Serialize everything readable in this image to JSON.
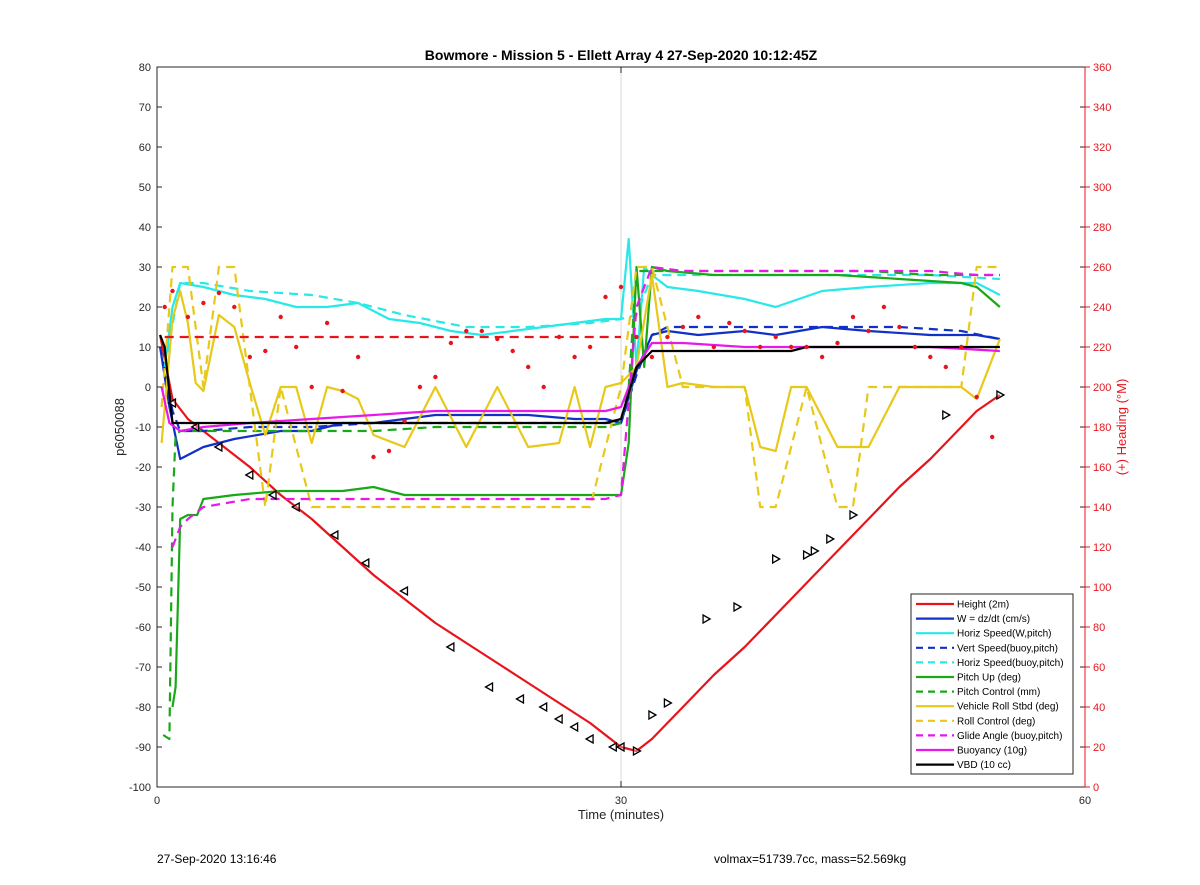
{
  "chart_data": {
    "type": "line",
    "title": "Bowmore - Mission 5 - Ellett Array 4 27-Sep-2020 10:12:45Z",
    "xlabel": "Time (minutes)",
    "ylabel": "p6050088",
    "y2label": "(+) Heading (°M)",
    "xlim": [
      0,
      60
    ],
    "ylim": [
      -100,
      80
    ],
    "y2lim": [
      0,
      360
    ],
    "xticks": [
      0,
      30,
      60
    ],
    "yticks": [
      -100,
      -90,
      -80,
      -70,
      -60,
      -50,
      -40,
      -30,
      -20,
      -10,
      0,
      10,
      20,
      30,
      40,
      50,
      60,
      70,
      80
    ],
    "y2ticks": [
      0,
      20,
      40,
      60,
      80,
      100,
      120,
      140,
      160,
      180,
      200,
      220,
      240,
      260,
      280,
      300,
      320,
      340,
      360
    ],
    "grid": "x=30 only",
    "legend_position": "bottom-right",
    "colors": {
      "height": "#e8141c",
      "w": "#1030c8",
      "horiz": "#28e8e8",
      "pitch": "#18a818",
      "roll": "#e8c818",
      "glide": "#e818e8",
      "buoy": "#e818e8",
      "vbd": "#000000",
      "right_axis": "#e8141c"
    },
    "series": [
      {
        "name": "Height (2m)",
        "color": "#e8141c",
        "dash": "solid",
        "x": [
          0.2,
          1,
          2,
          4,
          6,
          8,
          10,
          12,
          14,
          16,
          18,
          20,
          22,
          24,
          26,
          28,
          29,
          30,
          31,
          32,
          34,
          36,
          38,
          40,
          42,
          44,
          46,
          48,
          50,
          52,
          53,
          54.5
        ],
        "y": [
          13,
          -3,
          -8,
          -14,
          -20,
          -27,
          -33,
          -40,
          -47,
          -53,
          -59,
          -64,
          -69,
          -74,
          -79,
          -84,
          -87,
          -90,
          -91,
          -88,
          -80,
          -72,
          -65,
          -57,
          -49,
          -41,
          -33,
          -25,
          -18,
          -10,
          -6,
          -2
        ]
      },
      {
        "name": "W = dz/dt (cm/s)",
        "color": "#1030c8",
        "dash": "solid",
        "x": [
          0.2,
          0.8,
          1.5,
          3,
          5,
          8,
          10,
          12,
          14,
          16,
          18,
          20,
          24,
          27,
          29,
          30,
          31,
          32,
          33,
          35,
          38,
          40,
          43,
          46,
          50,
          53,
          54.5
        ],
        "y": [
          10,
          -5,
          -18,
          -15,
          -13,
          -11,
          -11,
          -9,
          -9,
          -8,
          -7,
          -7,
          -7,
          -8,
          -8,
          -9,
          4,
          13,
          14,
          13,
          14,
          13,
          15,
          14,
          13,
          13,
          12
        ]
      },
      {
        "name": "Horiz Speed(W,pitch)",
        "color": "#28e8e8",
        "dash": "solid",
        "x": [
          0.5,
          1,
          1.5,
          3,
          5,
          7,
          9,
          11,
          13,
          15,
          17,
          19,
          21,
          23,
          25,
          27,
          29,
          30,
          30.5,
          31,
          31.5,
          32,
          33,
          35,
          38,
          40,
          43,
          46,
          50,
          53,
          54.5
        ],
        "y": [
          5,
          20,
          26,
          25,
          23,
          22,
          20,
          20,
          21,
          17,
          16,
          14,
          13,
          14,
          15,
          16,
          17,
          17,
          37,
          5,
          30,
          28,
          25,
          24,
          22,
          20,
          24,
          25,
          26,
          26,
          23
        ]
      },
      {
        "name": "Vert Speed(buoy,pitch)",
        "color": "#1030c8",
        "dash": "dashed",
        "x": [
          0.2,
          1,
          1.5,
          3,
          6,
          10,
          14,
          18,
          22,
          26,
          29,
          30,
          31,
          32,
          33,
          36,
          40,
          44,
          48,
          52,
          54.5
        ],
        "y": [
          10,
          -6,
          -11,
          -11,
          -10,
          -10,
          -9,
          -9,
          -9,
          -9,
          -9,
          -9,
          3,
          13,
          15,
          15,
          15,
          15,
          15,
          14,
          12
        ]
      },
      {
        "name": "Horiz Speed(buoy,pitch)",
        "color": "#28e8e8",
        "dash": "dashed",
        "x": [
          0.5,
          1.5,
          3,
          6,
          10,
          13,
          16,
          20,
          24,
          28,
          30,
          31,
          32,
          35,
          40,
          45,
          50,
          54.5
        ],
        "y": [
          5,
          26,
          26,
          24,
          23,
          21,
          18,
          15,
          15,
          16,
          17,
          18,
          28,
          28,
          28,
          28,
          28,
          27
        ]
      },
      {
        "name": "Pitch Up (deg)",
        "color": "#18a818",
        "dash": "solid",
        "x": [
          1,
          1.2,
          1.5,
          2,
          2.6,
          3,
          5,
          8,
          10,
          12,
          14,
          16,
          20,
          24,
          27,
          29,
          30,
          30.5,
          31,
          31.5,
          32,
          33,
          36,
          40,
          44,
          48,
          52,
          53,
          54.5
        ],
        "y": [
          -80,
          -75,
          -33,
          -32,
          -32,
          -28,
          -27,
          -26,
          -26,
          -26,
          -25,
          -27,
          -27,
          -27,
          -27,
          -27,
          -27,
          -14,
          30,
          5,
          30,
          29,
          28,
          28,
          28,
          27,
          26,
          25,
          20
        ]
      },
      {
        "name": "Pitch Control (mm)",
        "color": "#18a818",
        "dash": "dashed",
        "x": [
          0.4,
          0.8,
          1,
          1.2,
          1.5,
          2,
          6,
          10,
          14,
          18,
          22,
          26,
          29,
          30,
          30.5,
          31,
          32,
          34,
          38,
          42,
          46,
          50,
          54.5
        ],
        "y": [
          -87,
          -88,
          -30,
          -12,
          -11,
          -11,
          -11,
          -11,
          -11,
          -10,
          -10,
          -10,
          -10,
          -9,
          0,
          29,
          29,
          29,
          29,
          29,
          29,
          28,
          28
        ]
      },
      {
        "name": "Vehicle Roll Stbd (deg)",
        "color": "#e8c818",
        "dash": "solid",
        "x": [
          0.3,
          1,
          1.5,
          2,
          2.5,
          3,
          4,
          5,
          6,
          7,
          8,
          9,
          10,
          11,
          12,
          13,
          14,
          16,
          18,
          20,
          22,
          24,
          26,
          27,
          28,
          29,
          30,
          31,
          32,
          33,
          34,
          36,
          38,
          39,
          40,
          41,
          42,
          44,
          46,
          48,
          50,
          52,
          53,
          54.5
        ],
        "y": [
          -14,
          17,
          24,
          16,
          1,
          -1,
          18,
          15,
          1,
          -12,
          0,
          0,
          -14,
          0,
          -1,
          -3,
          -12,
          -15,
          0,
          -15,
          0,
          -15,
          -14,
          0,
          -15,
          0,
          1,
          5,
          28,
          0,
          1,
          0,
          0,
          -15,
          -16,
          0,
          0,
          -15,
          -15,
          0,
          0,
          0,
          -3,
          12
        ]
      },
      {
        "name": "Roll Control (deg)",
        "color": "#e8c818",
        "dash": "dashed",
        "x": [
          0.3,
          1,
          1.4,
          2,
          3,
          4,
          5,
          6,
          7,
          8,
          10,
          12,
          14,
          16,
          18,
          20,
          22,
          24,
          26,
          28,
          30,
          31,
          32,
          34,
          36,
          38,
          39,
          40,
          42,
          44,
          45,
          46,
          48,
          50,
          52,
          53,
          54.5
        ],
        "y": [
          -5,
          30,
          30,
          30,
          0,
          30,
          30,
          0,
          -30,
          0,
          -30,
          -30,
          -30,
          -30,
          -30,
          -30,
          -30,
          -30,
          -30,
          -30,
          0,
          30,
          30,
          0,
          0,
          0,
          -30,
          -30,
          0,
          -30,
          -30,
          0,
          0,
          0,
          0,
          30,
          30
        ]
      },
      {
        "name": "Glide Angle (buoy,pitch)",
        "color": "#e818e8",
        "dash": "dashed",
        "x": [
          1,
          1.5,
          2,
          3,
          6,
          10,
          14,
          18,
          22,
          26,
          29,
          30,
          31,
          32,
          34,
          38,
          42,
          46,
          50,
          53,
          54.5
        ],
        "y": [
          -40,
          -35,
          -33,
          -30,
          -28,
          -28,
          -28,
          -28,
          -28,
          -28,
          -28,
          -27,
          20,
          30,
          29,
          29,
          29,
          29,
          29,
          28,
          28
        ]
      },
      {
        "name": "Buoyancy (10g)",
        "color": "#e818e8",
        "dash": "solid",
        "x": [
          0.3,
          0.8,
          1.5,
          3,
          6,
          10,
          14,
          18,
          22,
          26,
          29,
          30,
          31,
          32,
          34,
          38,
          42,
          46,
          50,
          54.5
        ],
        "y": [
          0,
          -9,
          -11,
          -10,
          -9,
          -8,
          -7,
          -6,
          -6,
          -6,
          -6,
          -5,
          5,
          11,
          11,
          10,
          10,
          10,
          10,
          9
        ]
      },
      {
        "name": "VBD (10 cc)",
        "color": "#000000",
        "dash": "solid",
        "x": [
          0.2,
          0.5,
          1,
          2,
          6,
          10,
          14,
          18,
          22,
          26,
          29,
          30,
          31,
          32,
          34,
          38,
          41,
          42,
          44,
          48,
          52,
          54.5
        ],
        "y": [
          13,
          10,
          -9,
          -9,
          -9,
          -9,
          -9,
          -9,
          -9,
          -9,
          -9,
          -8,
          5,
          9,
          9,
          9,
          9,
          10,
          10,
          10,
          10,
          10
        ]
      },
      {
        "name": "Heading (dashed ref)",
        "color": "#e8141c",
        "dash": "dashed",
        "axis": "right",
        "x": [
          0.5,
          30
        ],
        "y": [
          225,
          225
        ]
      }
    ],
    "heading_points": {
      "color": "#e8141c",
      "axis": "right",
      "x": [
        0.5,
        1,
        2,
        3,
        4,
        5,
        6,
        7,
        8,
        9,
        10,
        11,
        12,
        13,
        14,
        15,
        16,
        17,
        18,
        19,
        20,
        21,
        22,
        23,
        24,
        25,
        26,
        27,
        28,
        29,
        30,
        31,
        32,
        33,
        34,
        35,
        36,
        37,
        38,
        39,
        40,
        41,
        42,
        43,
        44,
        45,
        46,
        47,
        48,
        49,
        50,
        51,
        52,
        53,
        54
      ],
      "y": [
        240,
        248,
        235,
        242,
        247,
        240,
        215,
        218,
        235,
        220,
        200,
        232,
        198,
        215,
        165,
        168,
        183,
        200,
        205,
        222,
        228,
        228,
        224,
        218,
        210,
        200,
        225,
        215,
        220,
        245,
        250,
        225,
        215,
        225,
        230,
        235,
        220,
        232,
        228,
        220,
        225,
        220,
        220,
        215,
        222,
        235,
        228,
        240,
        230,
        220,
        215,
        210,
        220,
        195,
        175
      ]
    },
    "marker_points": {
      "series": "Height (2m)",
      "x": [
        1,
        2.5,
        4,
        6,
        7.5,
        9,
        11.5,
        13.5,
        16,
        19,
        21.5,
        23.5,
        25,
        26,
        27,
        28,
        29.5,
        30,
        31,
        32,
        33,
        35.5,
        37.5,
        40,
        42,
        42.5,
        43.5,
        45,
        51,
        54.5
      ],
      "y": [
        -4,
        -10,
        -15,
        -22,
        -27,
        -30,
        -37,
        -44,
        -51,
        -65,
        -75,
        -78,
        -80,
        -83,
        -85,
        -88,
        -90,
        -90,
        -91,
        -82,
        -79,
        -58,
        -55,
        -43,
        -42,
        -41,
        -38,
        -32,
        -7,
        -2
      ]
    }
  },
  "legend_items": [
    "Height (2m)",
    "W = dz/dt (cm/s)",
    "Horiz Speed(W,pitch)",
    "Vert Speed(buoy,pitch)",
    "Horiz Speed(buoy,pitch)",
    "Pitch Up (deg)",
    "Pitch Control (mm)",
    "Vehicle Roll Stbd (deg)",
    "Roll Control (deg)",
    "Glide Angle (buoy,pitch)",
    "Buoyancy (10g)",
    "VBD (10 cc)"
  ],
  "footer": {
    "timestamp": "27-Sep-2020 13:16:46",
    "stats": "volmax=51739.7cc, mass=52.569kg"
  }
}
